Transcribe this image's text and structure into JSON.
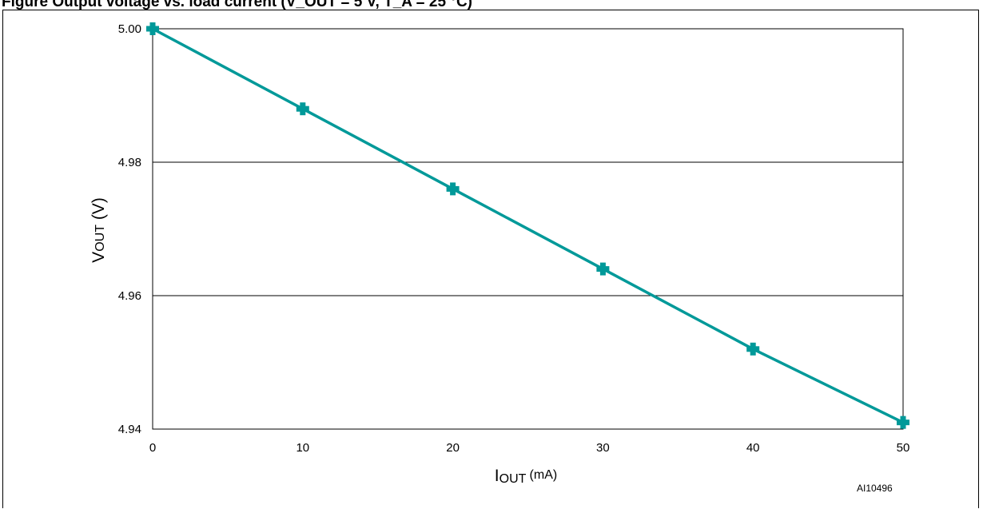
{
  "figure": {
    "title": "Figure     Output voltage vs. load current (V_OUT = 5 V, T_A = 25 °C)",
    "figure_id": "AI10496"
  },
  "colors": {
    "series": "#009999",
    "grid": "#000000",
    "axes": "#000000"
  },
  "chart_data": {
    "type": "line",
    "title": "",
    "xlabel": {
      "main": "I",
      "sub": "OUT",
      "unit": " (mA)"
    },
    "ylabel": {
      "main": "V",
      "sub": "OUT",
      "unit": " (V)"
    },
    "xlim": [
      0,
      50
    ],
    "ylim": [
      4.94,
      5.0
    ],
    "xticks": [
      0,
      10,
      20,
      30,
      40,
      50
    ],
    "yticks": [
      4.94,
      4.96,
      4.98,
      5.0
    ],
    "ytick_labels": [
      "4.94",
      "4.96",
      "4.98",
      "5.00"
    ],
    "xtick_labels": [
      "0",
      "10",
      "20",
      "30",
      "40",
      "50"
    ],
    "grid": "horizontal",
    "marker": "plus",
    "series": [
      {
        "x": [
          0,
          10,
          20,
          30,
          40,
          50
        ],
        "y": [
          5.0,
          4.988,
          4.976,
          4.964,
          4.952,
          4.941
        ]
      }
    ]
  }
}
